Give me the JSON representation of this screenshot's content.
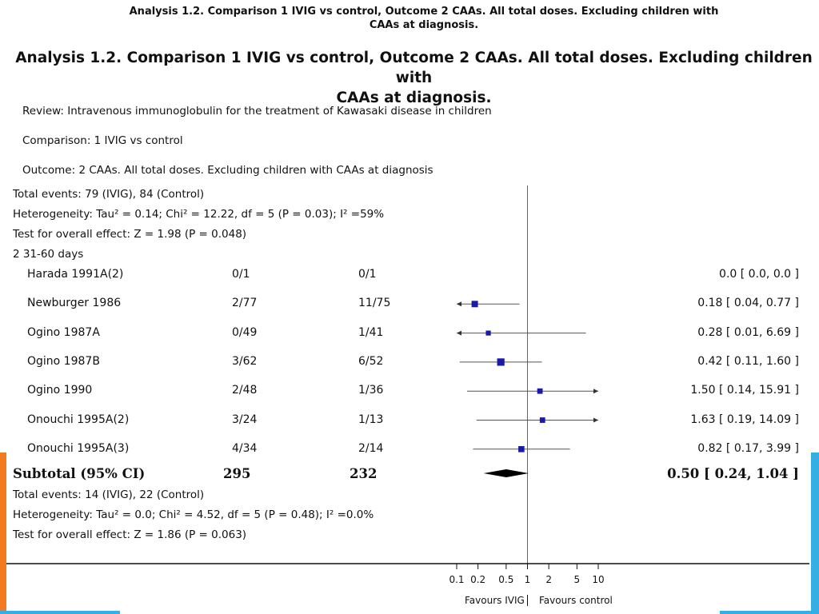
{
  "header": {
    "small_line1": "Analysis 1.2.   Comparison 1 IVIG vs control, Outcome 2 CAAs. All total doses. Excluding children with",
    "small_line2": "CAAs at diagnosis.",
    "big_line1": "Analysis 1.2.   Comparison 1 IVIG vs control, Outcome 2 CAAs. All total doses. Excluding children with",
    "big_line2": "CAAs at diagnosis."
  },
  "meta": {
    "review": "Review:   Intravenous immunoglobulin for the treatment of Kawasaki disease in children",
    "comparison": "Comparison:    1 IVIG vs control",
    "outcome": "Outcome:    2 CAAs. All total doses. Excluding children with CAAs at diagnosis"
  },
  "prev_group": {
    "total_events": "Total events: 79 (IVIG), 84 (Control)",
    "heterogeneity": "Heterogeneity: Tau² = 0.14; Chi² = 12.22, df = 5 (P = 0.03); I² =59%",
    "overall_effect": "Test for overall effect: Z = 1.98 (P = 0.048)"
  },
  "group_label": "2 31-60 days",
  "subtotal": {
    "label": "Subtotal (95% CI)",
    "ivig_total": "295",
    "control_total": "232",
    "ci_text": "0.50 [ 0.24, 1.04 ]",
    "total_events": "Total events: 14 (IVIG), 22 (Control)",
    "heterogeneity": "Heterogeneity: Tau² = 0.0; Chi² = 4.52, df = 5 (P = 0.48); I² =0.0%",
    "overall_effect": "Test for overall effect: Z = 1.86 (P = 0.063)"
  },
  "axis": {
    "ticks": [
      "0.1",
      "0.2",
      "0.5",
      "1",
      "2",
      "5",
      "10"
    ],
    "favours_left": "Favours IVIG",
    "favours_right": "Favours control"
  },
  "colors": {
    "marker": "#1a1aa6",
    "line": "#555555",
    "diamond": "#000000",
    "accent_orange": "#f47a20",
    "accent_blue": "#35aee3"
  },
  "chart_data": {
    "type": "forest",
    "scale": "log",
    "xlim": [
      0.1,
      10
    ],
    "null_value": 1,
    "studies": [
      {
        "name": "Harada 1991A(2)",
        "ivig": "0/1",
        "control": "0/1",
        "or": 0.0,
        "lower": 0.0,
        "upper": 0.0,
        "ci_text": "0.0 [ 0.0, 0.0 ]"
      },
      {
        "name": "Newburger 1986",
        "ivig": "2/77",
        "control": "11/75",
        "or": 0.18,
        "lower": 0.04,
        "upper": 0.77,
        "ci_text": "0.18 [ 0.04, 0.77 ]",
        "weight": 1.0
      },
      {
        "name": "Ogino 1987A",
        "ivig": "0/49",
        "control": "1/41",
        "or": 0.28,
        "lower": 0.01,
        "upper": 6.69,
        "ci_text": "0.28 [ 0.01, 6.69 ]",
        "weight": 0.55
      },
      {
        "name": "Ogino 1987B",
        "ivig": "3/62",
        "control": "6/52",
        "or": 0.42,
        "lower": 0.11,
        "upper": 1.6,
        "ci_text": "0.42 [ 0.11, 1.60 ]",
        "weight": 1.3
      },
      {
        "name": "Ogino 1990",
        "ivig": "2/48",
        "control": "1/36",
        "or": 1.5,
        "lower": 0.14,
        "upper": 15.91,
        "ci_text": "1.50 [ 0.14, 15.91 ]",
        "weight": 0.7
      },
      {
        "name": "Onouchi 1995A(2)",
        "ivig": "3/24",
        "control": "1/13",
        "or": 1.63,
        "lower": 0.19,
        "upper": 14.09,
        "ci_text": "1.63 [ 0.19, 14.09 ]",
        "weight": 0.7
      },
      {
        "name": "Onouchi 1995A(3)",
        "ivig": "4/34",
        "control": "2/14",
        "or": 0.82,
        "lower": 0.17,
        "upper": 3.99,
        "ci_text": "0.82 [ 0.17, 3.99 ]",
        "weight": 0.9
      }
    ],
    "pooled": {
      "or": 0.5,
      "lower": 0.24,
      "upper": 1.04
    }
  }
}
